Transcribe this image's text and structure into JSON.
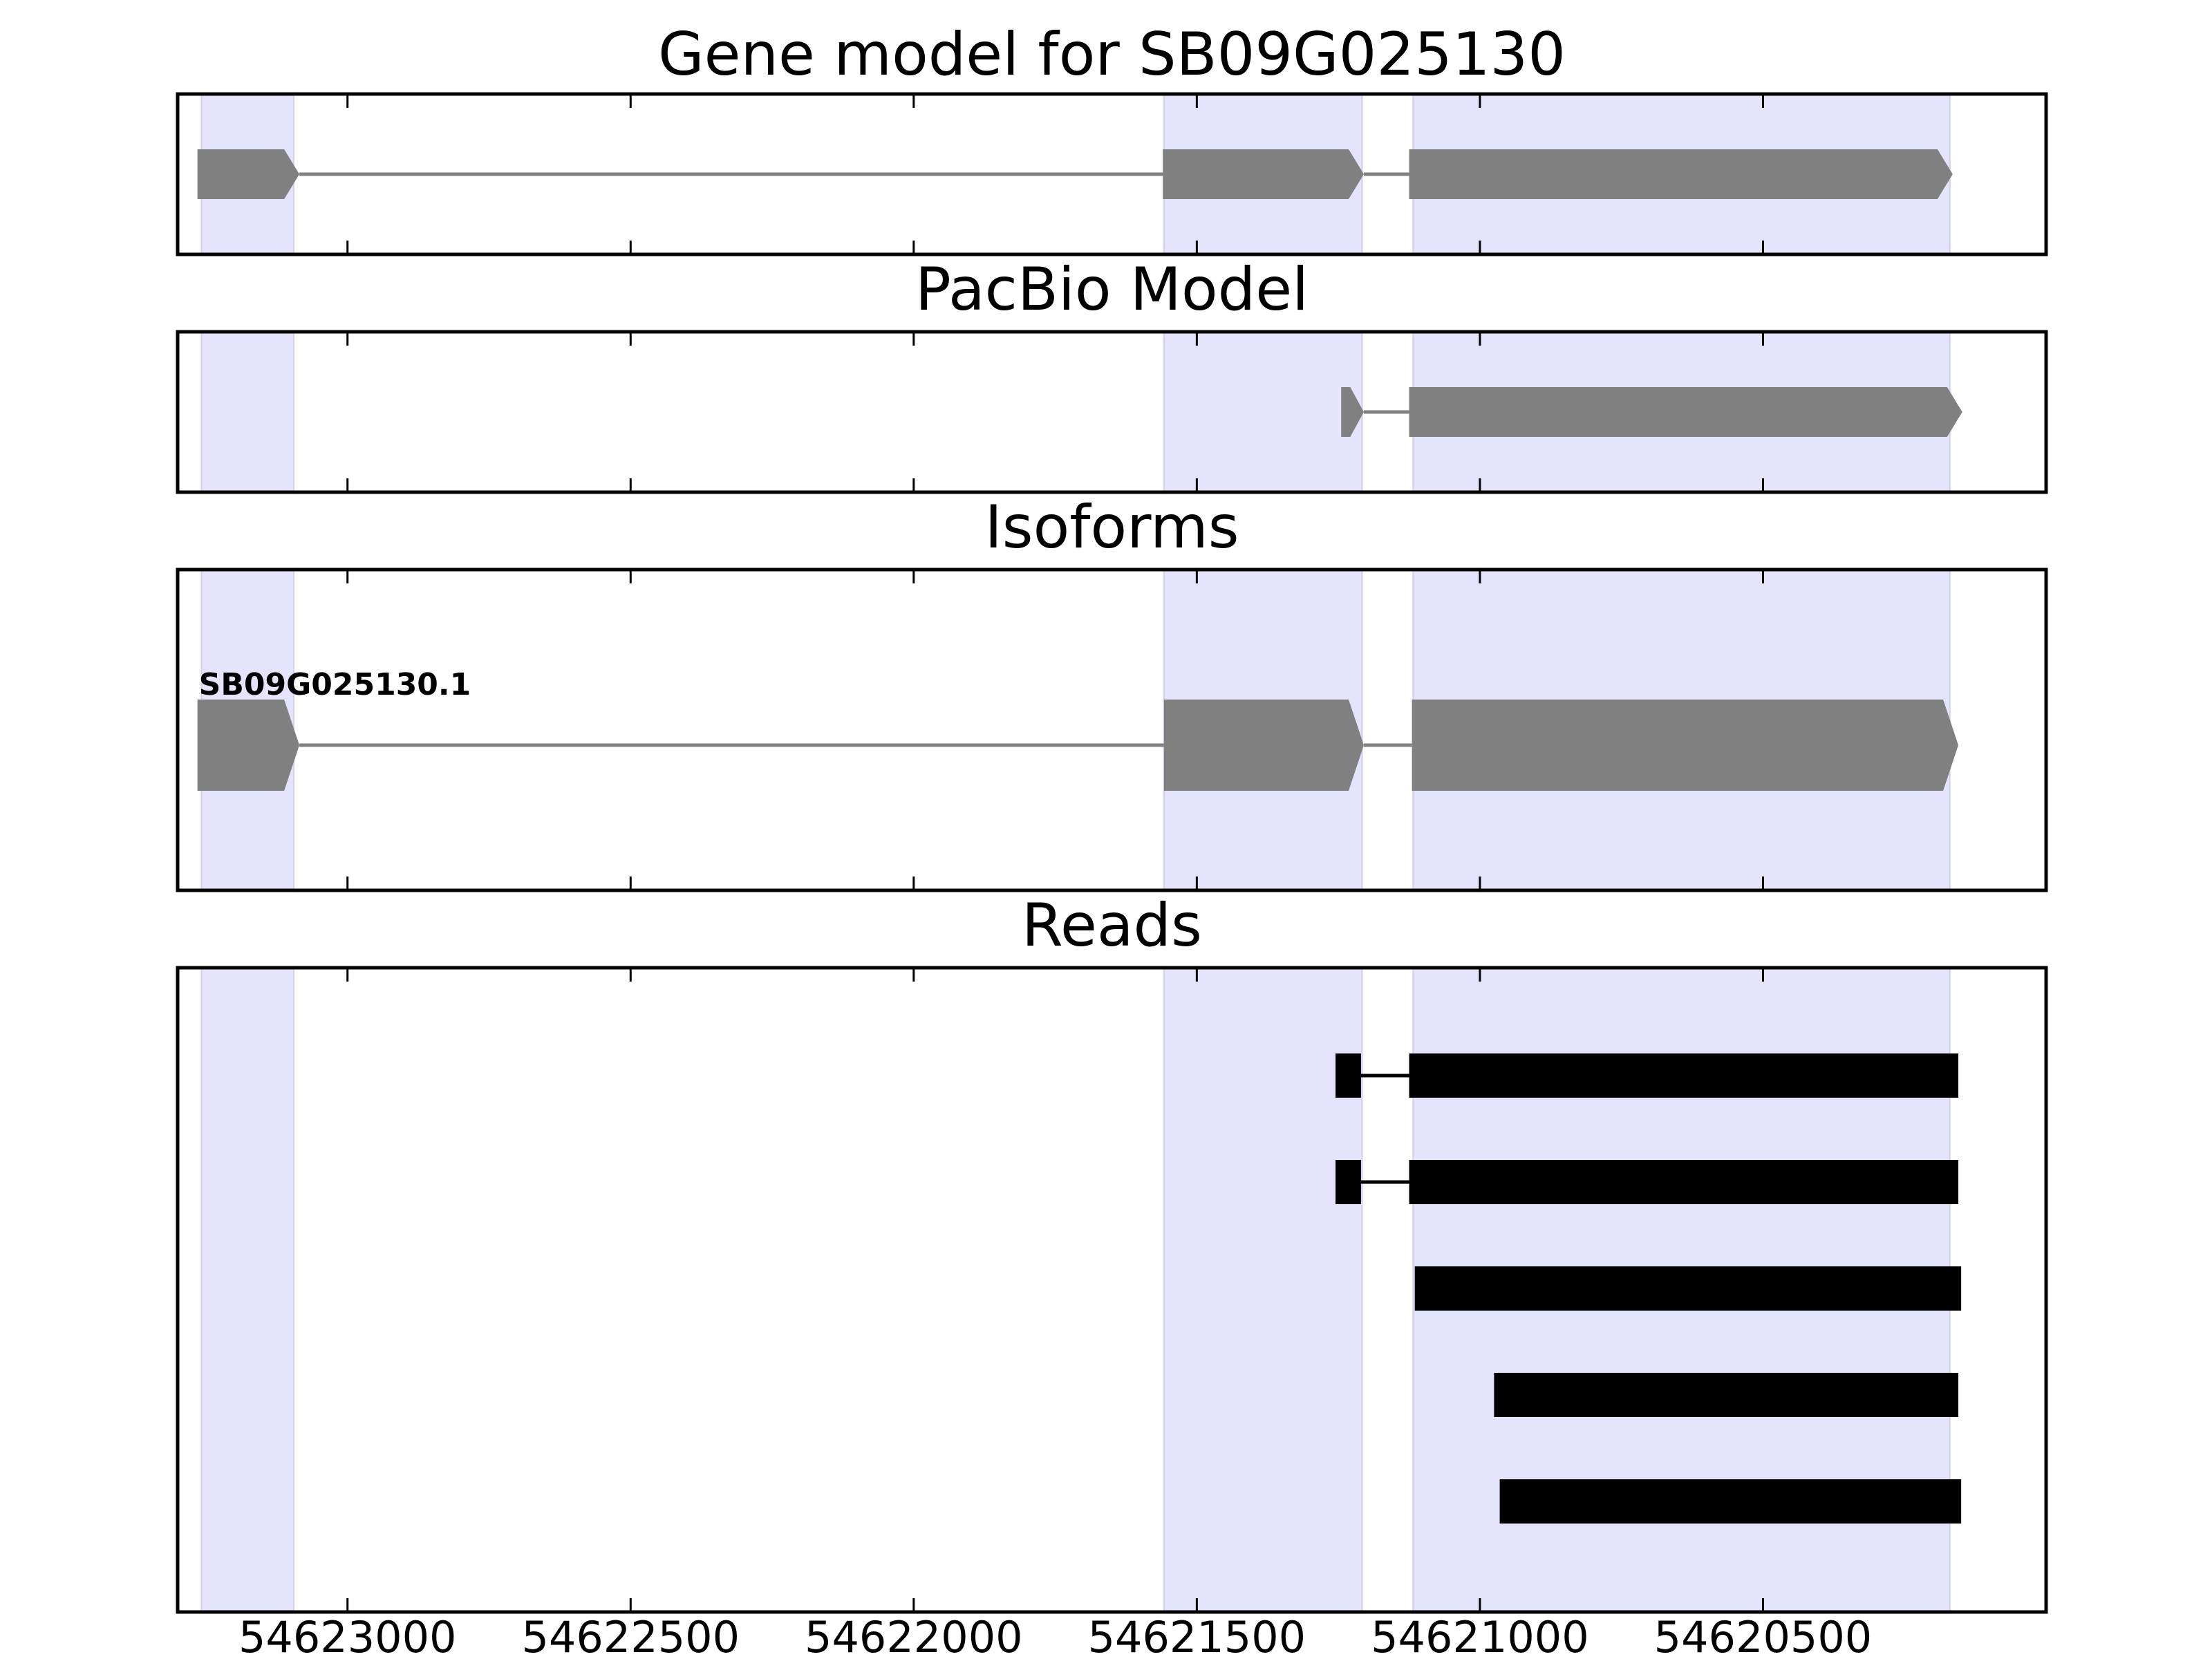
{
  "chart_data": {
    "type": "gene-track",
    "axis": {
      "xlim": [
        54623300,
        54620000
      ],
      "ticks": [
        54623000,
        54622500,
        54622000,
        54621500,
        54621000,
        54620500
      ],
      "tick_labels": [
        "54623000",
        "54622500",
        "54622000",
        "54621500",
        "54621000",
        "54620500"
      ]
    },
    "highlight_regions": [
      [
        54623258,
        54623095
      ],
      [
        54621558,
        54621208
      ],
      [
        54621118,
        54620170
      ]
    ],
    "colors": {
      "highlight": "#e4e4fc",
      "model": "#808080",
      "reads": "#000000",
      "frame": "#000000"
    },
    "panels": [
      {
        "id": "gene-model",
        "title": "Gene model for SB09G025130",
        "features": [
          {
            "kind": "model",
            "exons": [
              [
                54623265,
                54623085
              ],
              [
                54621560,
                54621205
              ],
              [
                54621125,
                54620165
              ]
            ]
          }
        ]
      },
      {
        "id": "pacbio-model",
        "title": "PacBio Model",
        "features": [
          {
            "kind": "model",
            "exons": [
              [
                54621245,
                54621205
              ],
              [
                54621125,
                54620148
              ]
            ]
          }
        ]
      },
      {
        "id": "isoforms",
        "title": "Isoforms",
        "features": [
          {
            "kind": "model",
            "label": "SB09G025130.1",
            "exons": [
              [
                54623265,
                54623085
              ],
              [
                54621558,
                54621205
              ],
              [
                54621120,
                54620155
              ]
            ]
          }
        ]
      },
      {
        "id": "reads",
        "title": "Reads",
        "features": [
          {
            "kind": "read",
            "exons": [
              [
                54621255,
                54621210
              ],
              [
                54621125,
                54620155
              ]
            ]
          },
          {
            "kind": "read",
            "exons": [
              [
                54621255,
                54621210
              ],
              [
                54621125,
                54620155
              ]
            ]
          },
          {
            "kind": "read",
            "exons": [
              [
                54621115,
                54620150
              ]
            ]
          },
          {
            "kind": "read",
            "exons": [
              [
                54620975,
                54620155
              ]
            ]
          },
          {
            "kind": "read",
            "exons": [
              [
                54620965,
                54620150
              ]
            ]
          }
        ]
      }
    ]
  }
}
